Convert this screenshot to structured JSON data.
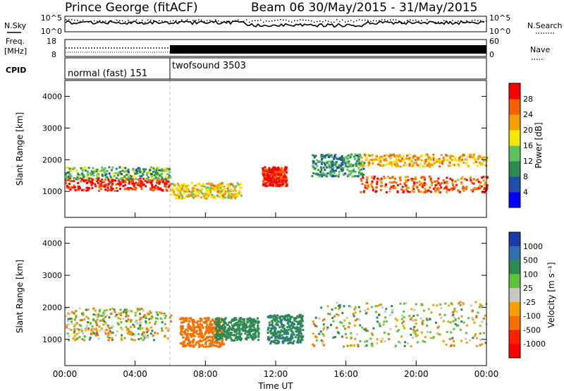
{
  "header": {
    "station": "Prince George (fitACF)",
    "beam_dates": "Beam 06 30/May/2015 - 31/May/2015"
  },
  "left_labels": {
    "nsky": "N.Sky",
    "freq_line1": "Freq.",
    "freq_line2": "[MHz]",
    "cpid": "CPID"
  },
  "right_labels": {
    "nsearch": "N.Search",
    "nave": "Nave"
  },
  "noise_panel": {
    "left_ticks": [
      "10^5",
      "10^0"
    ],
    "right_ticks": [
      "10^5",
      "10^0"
    ]
  },
  "freq_panel": {
    "left_ticks": [
      "18",
      "8"
    ],
    "right_ticks": [
      "60",
      "0"
    ]
  },
  "cpid_panel": {
    "segments": [
      {
        "label": "normal (fast) 151",
        "start_hour": 0
      },
      {
        "label": "twofsound 3503",
        "start_hour": 6
      }
    ]
  },
  "chart_data": [
    {
      "type": "heatmap",
      "quantity": "Power",
      "xlabel": "",
      "ylabel": "Slant Range [km]",
      "xlim_hours": [
        0,
        24
      ],
      "ylim": [
        180,
        4500
      ],
      "yticks": [
        1000,
        2000,
        3000,
        4000
      ],
      "colorbar": {
        "label": "Power [dB]",
        "ticks": [
          "4",
          "8",
          "12",
          "16",
          "20",
          "24",
          "28"
        ],
        "range": [
          0,
          30
        ],
        "colors": [
          "#0000ff",
          "#1f4fa8",
          "#2f8a52",
          "#5fc25f",
          "#f5e600",
          "#f5a000",
          "#f56000",
          "#ff0000"
        ]
      },
      "features": [
        {
          "hours": [
            0,
            6
          ],
          "range_km": [
            1050,
            1450
          ],
          "level_db": 28
        },
        {
          "hours": [
            0,
            6
          ],
          "range_km": [
            1400,
            1800
          ],
          "level_db": 12
        },
        {
          "hours": [
            6,
            10
          ],
          "range_km": [
            800,
            1300
          ],
          "level_db": 18
        },
        {
          "hours": [
            11.2,
            12.6
          ],
          "range_km": [
            1200,
            1800
          ],
          "level_db": 28
        },
        {
          "hours": [
            14,
            17
          ],
          "range_km": [
            1500,
            2200
          ],
          "level_db": 10
        },
        {
          "hours": [
            16.8,
            24
          ],
          "range_km": [
            1000,
            1500
          ],
          "level_db": 24
        },
        {
          "hours": [
            16.8,
            24
          ],
          "range_km": [
            1800,
            2200
          ],
          "level_db": 20
        }
      ]
    },
    {
      "type": "heatmap",
      "quantity": "Velocity",
      "xlabel": "Time UT",
      "ylabel": "Slant Range [km]",
      "xlim_hours": [
        0,
        24
      ],
      "ylim": [
        180,
        4500
      ],
      "yticks": [
        1000,
        2000,
        3000,
        4000
      ],
      "xticks": [
        "00:00",
        "04:00",
        "08:00",
        "12:00",
        "16:00",
        "20:00",
        "00:00"
      ],
      "colorbar": {
        "label": "Velocity [m s⁻¹]",
        "ticks": [
          "1000",
          "500",
          "100",
          "25",
          "-25",
          "-100",
          "-500",
          "-1000"
        ],
        "colors": [
          "#1a3aa8",
          "#2f6fb0",
          "#2f8a52",
          "#5fc23a",
          "#c8c8c0",
          "#f5a000",
          "#f57000",
          "#ff2000",
          "#ff0000"
        ]
      },
      "features": [
        {
          "hours": [
            0,
            6
          ],
          "range_km": [
            1000,
            2000
          ],
          "velocity": 0
        },
        {
          "hours": [
            6.5,
            9
          ],
          "range_km": [
            800,
            1700
          ],
          "velocity": -300
        },
        {
          "hours": [
            8.5,
            11
          ],
          "range_km": [
            1000,
            1700
          ],
          "velocity": 300
        },
        {
          "hours": [
            11.5,
            13.5
          ],
          "range_km": [
            900,
            1800
          ],
          "velocity": 400
        },
        {
          "hours": [
            14,
            24
          ],
          "range_km": [
            800,
            2200
          ],
          "velocity": 0
        }
      ]
    }
  ]
}
